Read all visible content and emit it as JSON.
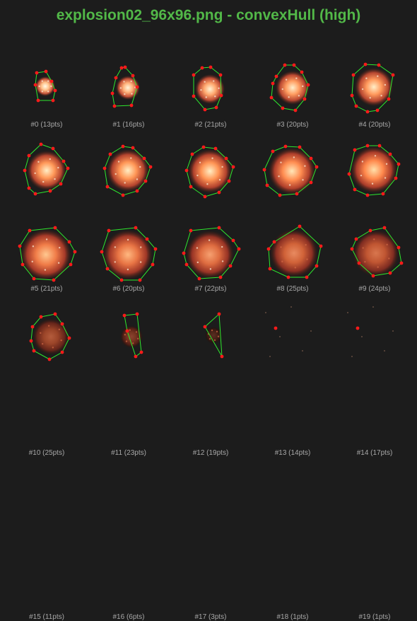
{
  "title": "explosion02_96x96.png - convexHull (high)",
  "colors": {
    "title": "#52b848",
    "hull": "#2ee82e",
    "point": "#ff1a1a",
    "caption": "#a8a8a8"
  },
  "frames": [
    {
      "label": "#0 (13pts)"
    },
    {
      "label": "#1 (16pts)"
    },
    {
      "label": "#2 (21pts)"
    },
    {
      "label": "#3 (20pts)"
    },
    {
      "label": "#4 (20pts)"
    },
    {
      "label": "#5 (21pts)"
    },
    {
      "label": "#6 (20pts)"
    },
    {
      "label": "#7 (22pts)"
    },
    {
      "label": "#8 (25pts)"
    },
    {
      "label": "#9 (24pts)"
    },
    {
      "label": "#10 (25pts)"
    },
    {
      "label": "#11 (23pts)"
    },
    {
      "label": "#12 (19pts)"
    },
    {
      "label": "#13 (14pts)"
    },
    {
      "label": "#14 (17pts)"
    },
    {
      "label": "#15 (11pts)"
    },
    {
      "label": "#16 (6pts)"
    },
    {
      "label": "#17 (3pts)"
    },
    {
      "label": "#18 (1pts)"
    },
    {
      "label": "#19 (1pts)"
    }
  ]
}
